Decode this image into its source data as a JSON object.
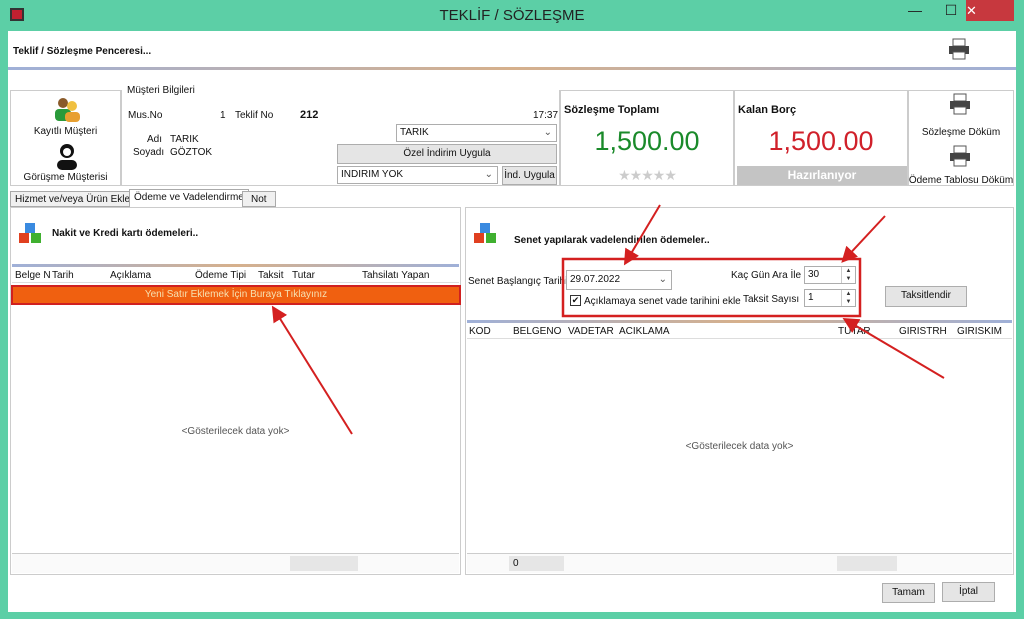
{
  "window": {
    "title": "TEKLİF / SÖZLEŞME",
    "minimize": "—",
    "maximize": "☐",
    "close": "✕"
  },
  "header": {
    "title": "Teklif / Sözleşme Penceresi..."
  },
  "customer": {
    "registered_label": "Kayıtlı Müşteri",
    "meeting_label": "Görüşme Müşterisi",
    "group_title": "Müşteri Bilgileri",
    "mus_no_label": "Mus.No",
    "mus_no": "1",
    "teklif_no_label": "Teklif No",
    "teklif_no": "212",
    "time": "17:37",
    "adi_label": "Adı",
    "adi": "TARIK",
    "soyadi_label": "Soyadı",
    "soyadi": "GÖZTOK",
    "customer_select": "TARIK",
    "special_discount_button": "Özel İndirim Uygula",
    "discount_select": "INDIRIM YOK",
    "apply_discount_button": "İnd. Uygula"
  },
  "totals": {
    "contract_total_label": "Sözleşme Toplamı",
    "contract_total": "1,500.00",
    "rating_stars": 0,
    "remaining_label": "Kalan Borç",
    "remaining": "1,500.00",
    "status": "Hazırlanıyor",
    "contract_print": "Sözleşme Döküm",
    "payment_table_print": "Ödeme Tablosu Döküm",
    "green": "#1a8a2a",
    "red": "#d0202a"
  },
  "tabs": [
    {
      "label": "Hizmet ve/veya Ürün Ekle"
    },
    {
      "label": "Ödeme ve Vadelendirme",
      "active": true
    },
    {
      "label": "Not"
    }
  ],
  "left": {
    "title": "Nakit ve Kredi kartı ödemeleri..",
    "columns": [
      "Belge N",
      "Tarih",
      "Açıklama",
      "Ödeme Tipi",
      "Taksit",
      "Tutar",
      "Tahsilatı Yapan"
    ],
    "add_row": "Yeni Satır Eklemek İçin Buraya Tıklayınız",
    "empty": "<Gösterilecek data yok>"
  },
  "right": {
    "title": "Senet yapılarak vadelendirilen ödemeler..",
    "start_date_label": "Senet Başlangıç Tarihi",
    "start_date": "29.07.2022",
    "append_checkbox_label": "Açıklamaya senet vade tarihini ekle",
    "append_checked": true,
    "interval_label": "Kaç Gün Ara İle",
    "interval": "30",
    "count_label": "Taksit Sayısı",
    "count": "1",
    "taksitlendir_button": "Taksitlendir",
    "columns": [
      "KOD",
      "BELGENO",
      "VADETAR",
      "ACIKLAMA",
      "TUTAR",
      "GIRISTRH",
      "GIRISKIM"
    ],
    "empty": "<Gösterilecek data yok>",
    "footer_total": "0"
  },
  "footer": {
    "ok_button": "Tamam",
    "cancel_button": "İptal"
  }
}
